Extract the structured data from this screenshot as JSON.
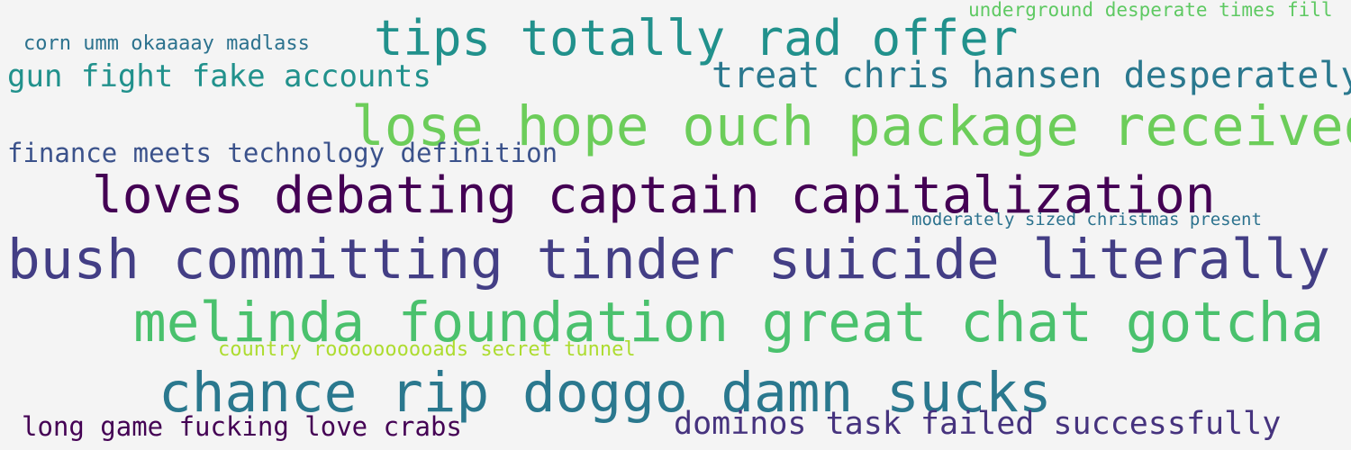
{
  "wordcloud": {
    "background": "#f4f4f4",
    "phrases": [
      {
        "text": "underground desperate times fill",
        "color": "#5ec962"
      },
      {
        "text": "corn umm okaaaay madlass",
        "color": "#2c728e"
      },
      {
        "text": "tips totally rad offer",
        "color": "#21918c"
      },
      {
        "text": "gun fight fake accounts",
        "color": "#21918c"
      },
      {
        "text": "treat chris hansen desperately",
        "color": "#2a788e"
      },
      {
        "text": "lose hope ouch package received",
        "color": "#6ccd5a"
      },
      {
        "text": "finance meets technology definition",
        "color": "#3b528b"
      },
      {
        "text": "loves debating captain capitalization",
        "color": "#440154"
      },
      {
        "text": "moderately sized christmas present",
        "color": "#2c728e"
      },
      {
        "text": "bush committing tinder suicide literally",
        "color": "#433e85"
      },
      {
        "text": "melinda foundation great chat gotcha",
        "color": "#4ac16d"
      },
      {
        "text": "country roooooooooads secret tunnel",
        "color": "#addc30"
      },
      {
        "text": "chance rip doggo damn sucks",
        "color": "#2a788e"
      },
      {
        "text": "long game fucking love crabs",
        "color": "#440154"
      },
      {
        "text": "dominos task failed successfully",
        "color": "#46337e"
      }
    ]
  }
}
